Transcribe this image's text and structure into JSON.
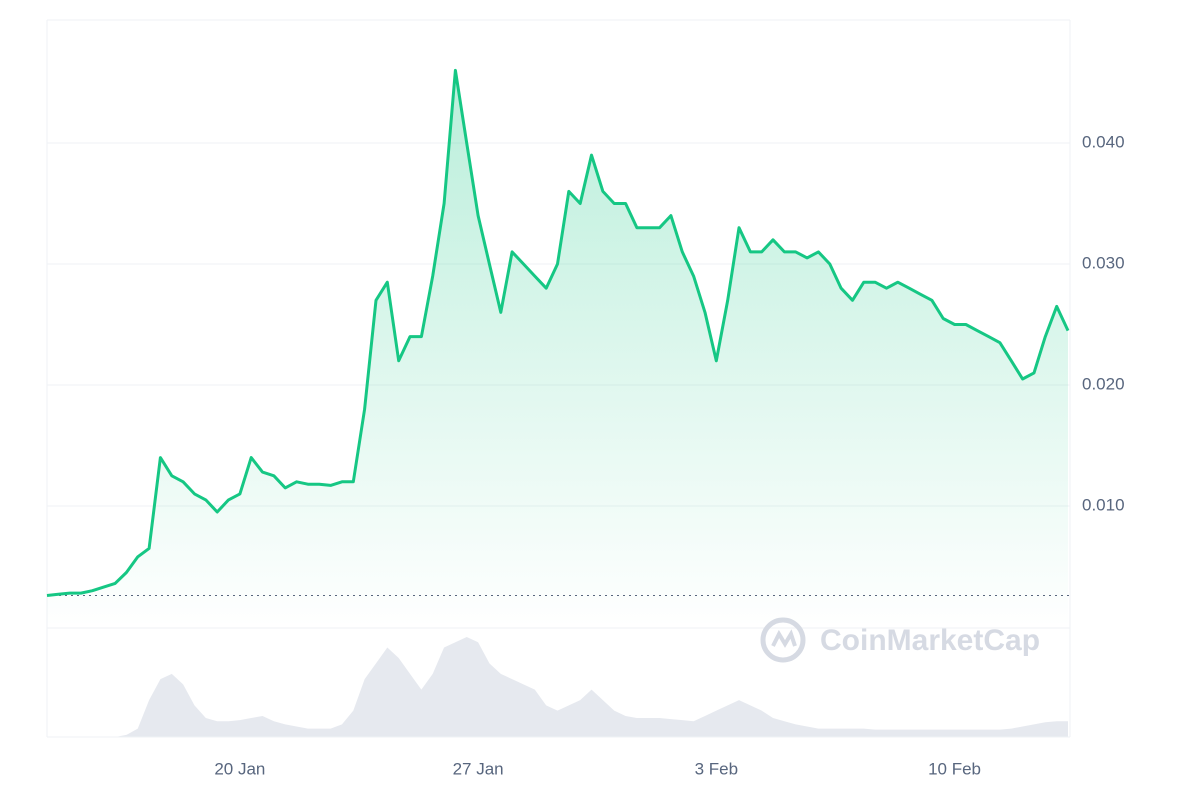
{
  "chart_data": {
    "type": "line",
    "watermark": "CoinMarketCap",
    "categories": [
      null,
      null,
      null,
      null,
      null,
      null,
      null,
      null,
      null,
      null,
      null,
      null,
      null,
      null,
      null,
      null,
      null,
      "20 Jan",
      null,
      null,
      null,
      null,
      null,
      null,
      null,
      null,
      null,
      null,
      null,
      null,
      null,
      null,
      null,
      null,
      null,
      null,
      null,
      null,
      "27 Jan",
      null,
      null,
      null,
      null,
      null,
      null,
      null,
      null,
      null,
      null,
      null,
      null,
      null,
      null,
      null,
      null,
      null,
      null,
      null,
      null,
      "3 Feb",
      null,
      null,
      null,
      null,
      null,
      null,
      null,
      null,
      null,
      null,
      null,
      null,
      null,
      null,
      null,
      null,
      null,
      null,
      null,
      null,
      "10 Feb",
      null,
      null,
      null,
      null,
      null,
      null,
      null,
      null,
      null,
      null
    ],
    "values": [
      0.0026,
      0.0027,
      0.0028,
      0.0028,
      0.003,
      0.0033,
      0.0036,
      0.0045,
      0.0058,
      0.0065,
      0.014,
      0.0125,
      0.012,
      0.011,
      0.0105,
      0.0095,
      0.0105,
      0.011,
      0.014,
      0.0128,
      0.0125,
      0.0115,
      0.012,
      0.0118,
      0.0118,
      0.0117,
      0.012,
      0.012,
      0.018,
      0.027,
      0.0285,
      0.022,
      0.024,
      0.024,
      0.029,
      0.035,
      0.046,
      0.04,
      0.034,
      0.03,
      0.026,
      0.031,
      0.03,
      0.029,
      0.028,
      0.03,
      0.036,
      0.035,
      0.039,
      0.036,
      0.035,
      0.035,
      0.033,
      0.033,
      0.033,
      0.034,
      0.031,
      0.029,
      0.026,
      0.022,
      0.027,
      0.033,
      0.031,
      0.031,
      0.032,
      0.031,
      0.031,
      0.0305,
      0.031,
      0.03,
      0.028,
      0.027,
      0.0285,
      0.0285,
      0.028,
      0.0285,
      0.028,
      0.0275,
      0.027,
      0.0255,
      0.025,
      0.025,
      0.0245,
      0.024,
      0.0235,
      0.022,
      0.0205,
      0.021,
      0.024,
      0.0265,
      0.0245
    ],
    "volume": [
      0,
      0,
      0,
      0,
      0,
      0,
      0,
      2,
      8,
      35,
      55,
      60,
      50,
      30,
      18,
      15,
      15,
      16,
      18,
      20,
      15,
      12,
      10,
      8,
      8,
      8,
      12,
      25,
      55,
      70,
      85,
      75,
      60,
      45,
      60,
      85,
      90,
      95,
      90,
      70,
      60,
      55,
      50,
      45,
      30,
      25,
      30,
      35,
      45,
      35,
      25,
      20,
      18,
      18,
      18,
      17,
      16,
      15,
      20,
      25,
      30,
      35,
      30,
      25,
      18,
      15,
      12,
      10,
      8,
      8,
      8,
      8,
      8,
      7,
      7,
      7,
      7,
      7,
      7,
      7,
      7,
      7,
      7,
      7,
      7,
      8,
      10,
      12,
      14,
      15,
      15
    ],
    "color": "#16c784",
    "volume_color": "#e6e9ef",
    "ylim": [
      0,
      0.05
    ],
    "yticks": [
      {
        "value": 0.01,
        "label": "0.010"
      },
      {
        "value": 0.02,
        "label": "0.020"
      },
      {
        "value": 0.03,
        "label": "0.030"
      },
      {
        "value": 0.04,
        "label": "0.040"
      }
    ],
    "grid": true
  }
}
